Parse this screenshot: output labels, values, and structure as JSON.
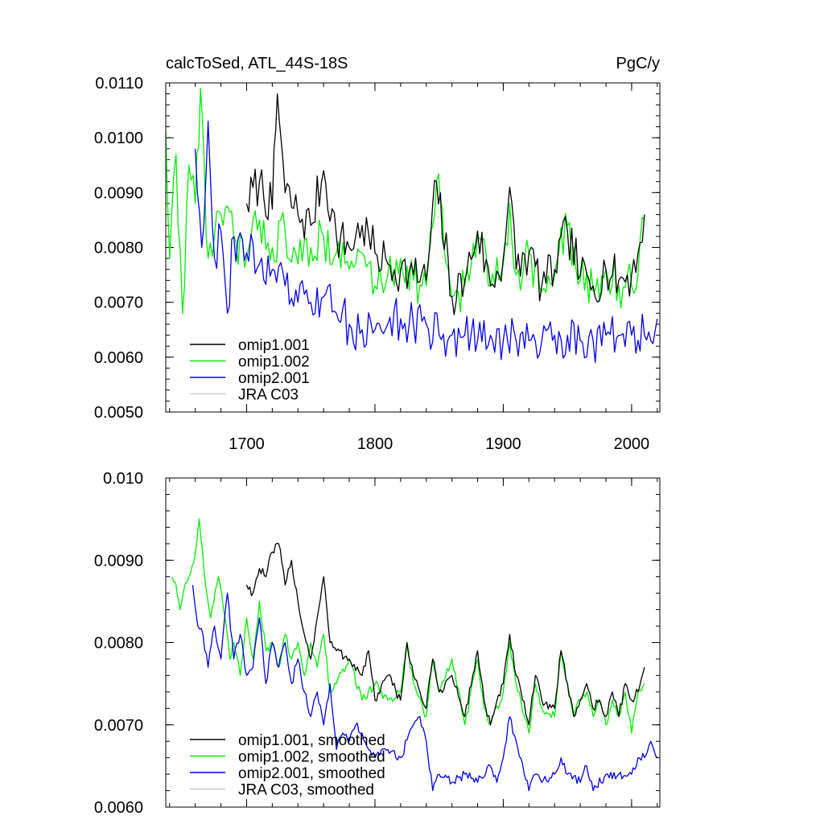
{
  "chart_data": [
    {
      "type": "line",
      "title": "calcToSed, ATL_44S-18S",
      "units": "PgC/y",
      "xlim": [
        1637,
        2022
      ],
      "ylim": [
        0.005,
        0.011
      ],
      "x_ticks": [
        1700,
        1800,
        1900,
        2000
      ],
      "x_tick_labels": [
        "1700",
        "1800",
        "1900",
        "2000"
      ],
      "y_ticks": [
        0.005,
        0.006,
        0.007,
        0.008,
        0.009,
        0.01,
        0.011
      ],
      "y_tick_labels": [
        "0.0050",
        "0.0060",
        "0.0070",
        "0.0080",
        "0.0090",
        "0.0100",
        "0.0110"
      ],
      "legend_position": "bottom-left",
      "legend": [
        "omip1.001",
        "omip1.002",
        "omip2.001",
        "JRA C03"
      ],
      "series": [
        {
          "name": "omip1.001",
          "color": "#000000",
          "x": [
            1700,
            1710,
            1720,
            1724,
            1730,
            1740,
            1750,
            1760,
            1770,
            1780,
            1790,
            1800,
            1810,
            1820,
            1830,
            1840,
            1848,
            1860,
            1870,
            1880,
            1890,
            1900,
            1905,
            1910,
            1920,
            1930,
            1940,
            1950,
            1960,
            1970,
            1980,
            1990,
            2000,
            2005,
            2010
          ],
          "y": [
            0.0088,
            0.0092,
            0.0087,
            0.0108,
            0.009,
            0.0086,
            0.0084,
            0.0094,
            0.0082,
            0.008,
            0.0084,
            0.0079,
            0.0077,
            0.0076,
            0.0075,
            0.0074,
            0.0092,
            0.0071,
            0.0074,
            0.0083,
            0.0073,
            0.0078,
            0.0091,
            0.0076,
            0.0079,
            0.0073,
            0.0076,
            0.0083,
            0.0075,
            0.0073,
            0.0076,
            0.0074,
            0.0075,
            0.0079,
            0.0086
          ]
        },
        {
          "name": "omip1.002",
          "color": "#00ee00",
          "x": [
            1637,
            1640,
            1645,
            1650,
            1655,
            1660,
            1664,
            1670,
            1680,
            1690,
            1700,
            1710,
            1720,
            1730,
            1740,
            1750,
            1760,
            1770,
            1780,
            1790,
            1800,
            1810,
            1820,
            1830,
            1840,
            1848,
            1860,
            1870,
            1880,
            1890,
            1900,
            1905,
            1910,
            1920,
            1930,
            1940,
            1950,
            1960,
            1970,
            1980,
            1990,
            2000,
            2005,
            2010
          ],
          "y": [
            0.0101,
            0.0078,
            0.0097,
            0.0068,
            0.0095,
            0.0088,
            0.0109,
            0.0078,
            0.0086,
            0.0082,
            0.0078,
            0.0085,
            0.008,
            0.0083,
            0.0077,
            0.008,
            0.0082,
            0.0079,
            0.0076,
            0.0079,
            0.0073,
            0.0075,
            0.0078,
            0.0074,
            0.0073,
            0.0092,
            0.0071,
            0.0073,
            0.0082,
            0.0073,
            0.0077,
            0.0088,
            0.0075,
            0.0079,
            0.0072,
            0.0075,
            0.0084,
            0.0074,
            0.0072,
            0.0076,
            0.0073,
            0.0073,
            0.0075,
            0.0085
          ]
        },
        {
          "name": "omip2.001",
          "color": "#0000ee",
          "x": [
            1660,
            1665,
            1670,
            1675,
            1680,
            1685,
            1690,
            1700,
            1710,
            1720,
            1730,
            1740,
            1750,
            1760,
            1770,
            1780,
            1790,
            1800,
            1810,
            1820,
            1830,
            1840,
            1850,
            1860,
            1870,
            1880,
            1890,
            1900,
            1910,
            1920,
            1930,
            1940,
            1950,
            1960,
            1970,
            1980,
            1990,
            2000,
            2010,
            2015,
            2020
          ],
          "y": [
            0.0098,
            0.008,
            0.0103,
            0.0078,
            0.0083,
            0.0068,
            0.0082,
            0.0079,
            0.0077,
            0.0076,
            0.0073,
            0.007,
            0.007,
            0.0071,
            0.0068,
            0.0066,
            0.0065,
            0.0065,
            0.0066,
            0.0067,
            0.0066,
            0.0066,
            0.0064,
            0.0064,
            0.0064,
            0.0063,
            0.0064,
            0.0063,
            0.0063,
            0.0063,
            0.0063,
            0.0064,
            0.0064,
            0.0063,
            0.0063,
            0.0064,
            0.0064,
            0.0064,
            0.0064,
            0.0063,
            0.0067
          ]
        },
        {
          "name": "JRA C03",
          "color": "#c8c8c8",
          "x": [],
          "y": []
        }
      ]
    },
    {
      "type": "line",
      "title": "",
      "units": "",
      "xlim": [
        1637,
        2022
      ],
      "ylim": [
        0.006,
        0.01
      ],
      "x_ticks": [
        1700,
        1800,
        1900,
        2000
      ],
      "x_tick_labels": [],
      "y_ticks": [
        0.006,
        0.007,
        0.008,
        0.009,
        0.01
      ],
      "y_tick_labels": [
        "0.0060",
        "0.0070",
        "0.0080",
        "0.0090",
        "0.010"
      ],
      "legend_position": "bottom-left",
      "legend": [
        "omip1.001, smoothed",
        "omip1.002, smoothed",
        "omip2.001, smoothed",
        "JRA C03, smoothed"
      ],
      "series": [
        {
          "name": "omip1.001, smoothed",
          "color": "#000000",
          "x": [
            1700,
            1705,
            1710,
            1715,
            1720,
            1725,
            1730,
            1735,
            1740,
            1745,
            1750,
            1755,
            1760,
            1765,
            1770,
            1780,
            1790,
            1795,
            1800,
            1810,
            1820,
            1825,
            1830,
            1840,
            1845,
            1850,
            1860,
            1870,
            1880,
            1885,
            1890,
            1900,
            1905,
            1910,
            1920,
            1925,
            1930,
            1940,
            1945,
            1950,
            1955,
            1960,
            1965,
            1970,
            1975,
            1980,
            1985,
            1990,
            1995,
            2000,
            2005,
            2010
          ],
          "y": [
            0.0087,
            0.0086,
            0.0089,
            0.0088,
            0.0091,
            0.0092,
            0.0087,
            0.009,
            0.0085,
            0.0081,
            0.0078,
            0.0083,
            0.0088,
            0.008,
            0.0079,
            0.0078,
            0.0076,
            0.0079,
            0.0073,
            0.0076,
            0.0073,
            0.008,
            0.0076,
            0.0072,
            0.0078,
            0.0074,
            0.0076,
            0.0071,
            0.0079,
            0.0073,
            0.007,
            0.0075,
            0.0081,
            0.0076,
            0.007,
            0.0076,
            0.0073,
            0.0072,
            0.0079,
            0.0075,
            0.0071,
            0.0073,
            0.0075,
            0.0072,
            0.0073,
            0.0071,
            0.0074,
            0.0071,
            0.0075,
            0.0073,
            0.0074,
            0.0077
          ]
        },
        {
          "name": "omip1.002, smoothed",
          "color": "#00ee00",
          "x": [
            1642,
            1645,
            1648,
            1652,
            1655,
            1660,
            1663,
            1668,
            1672,
            1678,
            1682,
            1687,
            1690,
            1695,
            1700,
            1705,
            1710,
            1715,
            1720,
            1725,
            1730,
            1735,
            1740,
            1745,
            1750,
            1755,
            1760,
            1765,
            1770,
            1780,
            1790,
            1800,
            1810,
            1820,
            1825,
            1830,
            1840,
            1845,
            1850,
            1860,
            1870,
            1880,
            1885,
            1890,
            1900,
            1905,
            1910,
            1920,
            1925,
            1930,
            1940,
            1945,
            1950,
            1955,
            1960,
            1965,
            1970,
            1975,
            1980,
            1985,
            1990,
            1995,
            2000,
            2005,
            2010
          ],
          "y": [
            0.0088,
            0.0087,
            0.0084,
            0.0087,
            0.0088,
            0.0091,
            0.0095,
            0.0087,
            0.0083,
            0.0088,
            0.0084,
            0.0078,
            0.008,
            0.0076,
            0.0083,
            0.0078,
            0.0085,
            0.0079,
            0.008,
            0.0077,
            0.0081,
            0.0078,
            0.008,
            0.0076,
            0.008,
            0.0077,
            0.0081,
            0.0074,
            0.0075,
            0.0078,
            0.0073,
            0.0075,
            0.0073,
            0.0074,
            0.008,
            0.0075,
            0.0071,
            0.0078,
            0.0074,
            0.0078,
            0.007,
            0.0078,
            0.0072,
            0.007,
            0.0074,
            0.008,
            0.0075,
            0.0069,
            0.0075,
            0.0072,
            0.0071,
            0.0079,
            0.0075,
            0.0071,
            0.0073,
            0.0074,
            0.0071,
            0.0073,
            0.007,
            0.0073,
            0.0071,
            0.0074,
            0.0069,
            0.0074,
            0.0075
          ]
        },
        {
          "name": "omip2.001, smoothed",
          "color": "#0000ee",
          "x": [
            1658,
            1662,
            1666,
            1670,
            1675,
            1680,
            1685,
            1690,
            1695,
            1700,
            1705,
            1710,
            1715,
            1720,
            1725,
            1730,
            1735,
            1740,
            1745,
            1750,
            1755,
            1760,
            1765,
            1770,
            1775,
            1780,
            1785,
            1790,
            1795,
            1800,
            1810,
            1820,
            1830,
            1835,
            1840,
            1845,
            1850,
            1860,
            1870,
            1880,
            1890,
            1895,
            1900,
            1905,
            1910,
            1920,
            1925,
            1930,
            1940,
            1945,
            1950,
            1960,
            1965,
            1970,
            1980,
            1990,
            2000,
            2005,
            2010,
            2015,
            2020
          ],
          "y": [
            0.0087,
            0.0082,
            0.0081,
            0.0077,
            0.0082,
            0.0078,
            0.0086,
            0.0078,
            0.0081,
            0.0076,
            0.0077,
            0.0083,
            0.0075,
            0.008,
            0.0077,
            0.008,
            0.0075,
            0.0078,
            0.0074,
            0.0071,
            0.0074,
            0.007,
            0.0075,
            0.0067,
            0.0069,
            0.0068,
            0.007,
            0.0069,
            0.0067,
            0.0066,
            0.0067,
            0.0066,
            0.007,
            0.0071,
            0.0068,
            0.0062,
            0.0064,
            0.0063,
            0.0064,
            0.0063,
            0.0065,
            0.0063,
            0.0066,
            0.0071,
            0.0068,
            0.0062,
            0.0064,
            0.0063,
            0.0064,
            0.0066,
            0.0064,
            0.0063,
            0.0065,
            0.0062,
            0.0064,
            0.0064,
            0.0064,
            0.0066,
            0.0066,
            0.0068,
            0.0066
          ]
        },
        {
          "name": "JRA C03, smoothed",
          "color": "#c8c8c8",
          "x": [],
          "y": []
        }
      ]
    }
  ]
}
